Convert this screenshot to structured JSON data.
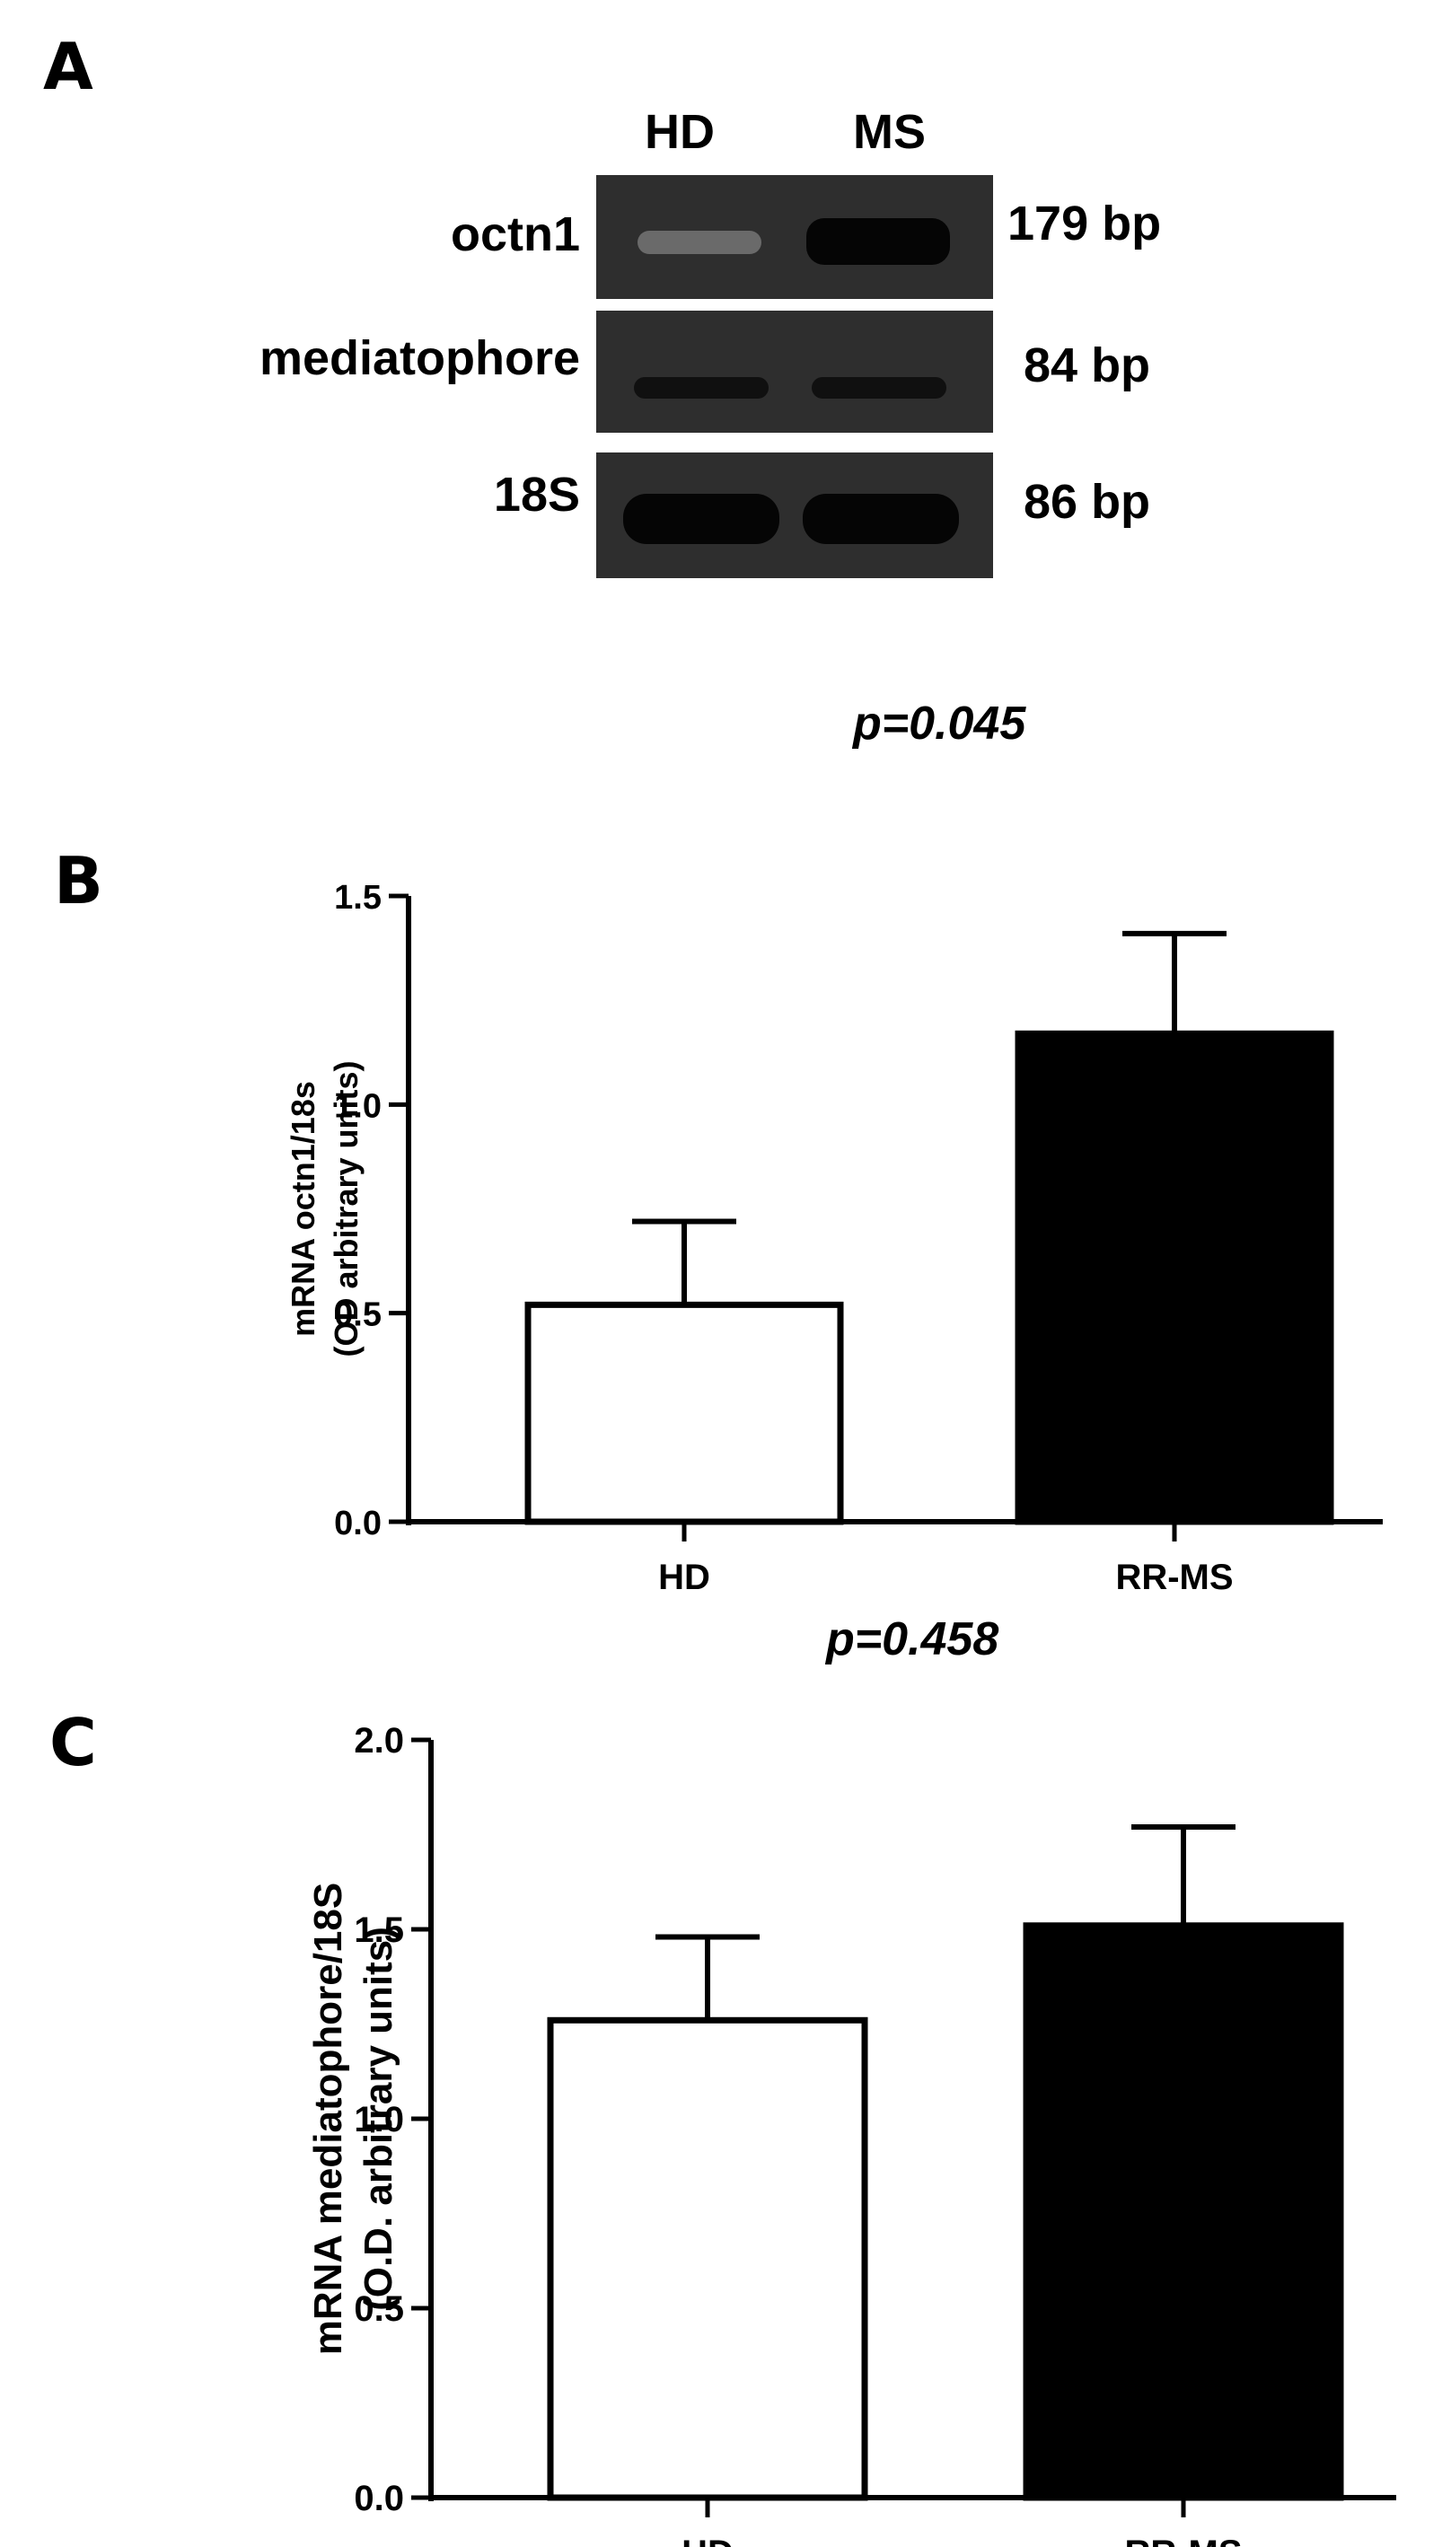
{
  "panel_a": {
    "letter": "A",
    "lanes": [
      "HD",
      "MS"
    ],
    "rows": [
      {
        "label": "octn1",
        "size": "179 bp",
        "band_intensity": [
          0.25,
          1.0
        ]
      },
      {
        "label": "mediatophore",
        "size": "84 bp",
        "band_intensity": [
          0.8,
          0.8
        ]
      },
      {
        "label": "18S",
        "size": "86 bp",
        "band_intensity": [
          1.0,
          1.0
        ]
      }
    ]
  },
  "chart_data": [
    {
      "panel": "B",
      "type": "bar",
      "title": "p=0.045",
      "categories": [
        "HD",
        "RR-MS"
      ],
      "values": [
        0.52,
        1.17
      ],
      "errors": [
        0.2,
        0.24
      ],
      "fills": [
        "#ffffff",
        "#000000"
      ],
      "ylabel": [
        "mRNA octn1/18s",
        "(OD arbitrary units)"
      ],
      "ylim": [
        0,
        1.5
      ],
      "yticks": [
        "0.0",
        "0.5",
        "1.0",
        "1.5"
      ],
      "grid": false
    },
    {
      "panel": "C",
      "type": "bar",
      "title": "p=0.458",
      "categories": [
        "HD",
        "RR-MS"
      ],
      "values": [
        1.26,
        1.51
      ],
      "errors": [
        0.22,
        0.26
      ],
      "fills": [
        "#ffffff",
        "#000000"
      ],
      "ylabel": [
        "mRNA mediatophore/18S",
        "(O.D. arbitrary units)"
      ],
      "ylim": [
        0,
        2.0
      ],
      "yticks": [
        "0.0",
        "0.5",
        "1.0",
        "1.5",
        "2.0"
      ],
      "grid": false
    }
  ]
}
